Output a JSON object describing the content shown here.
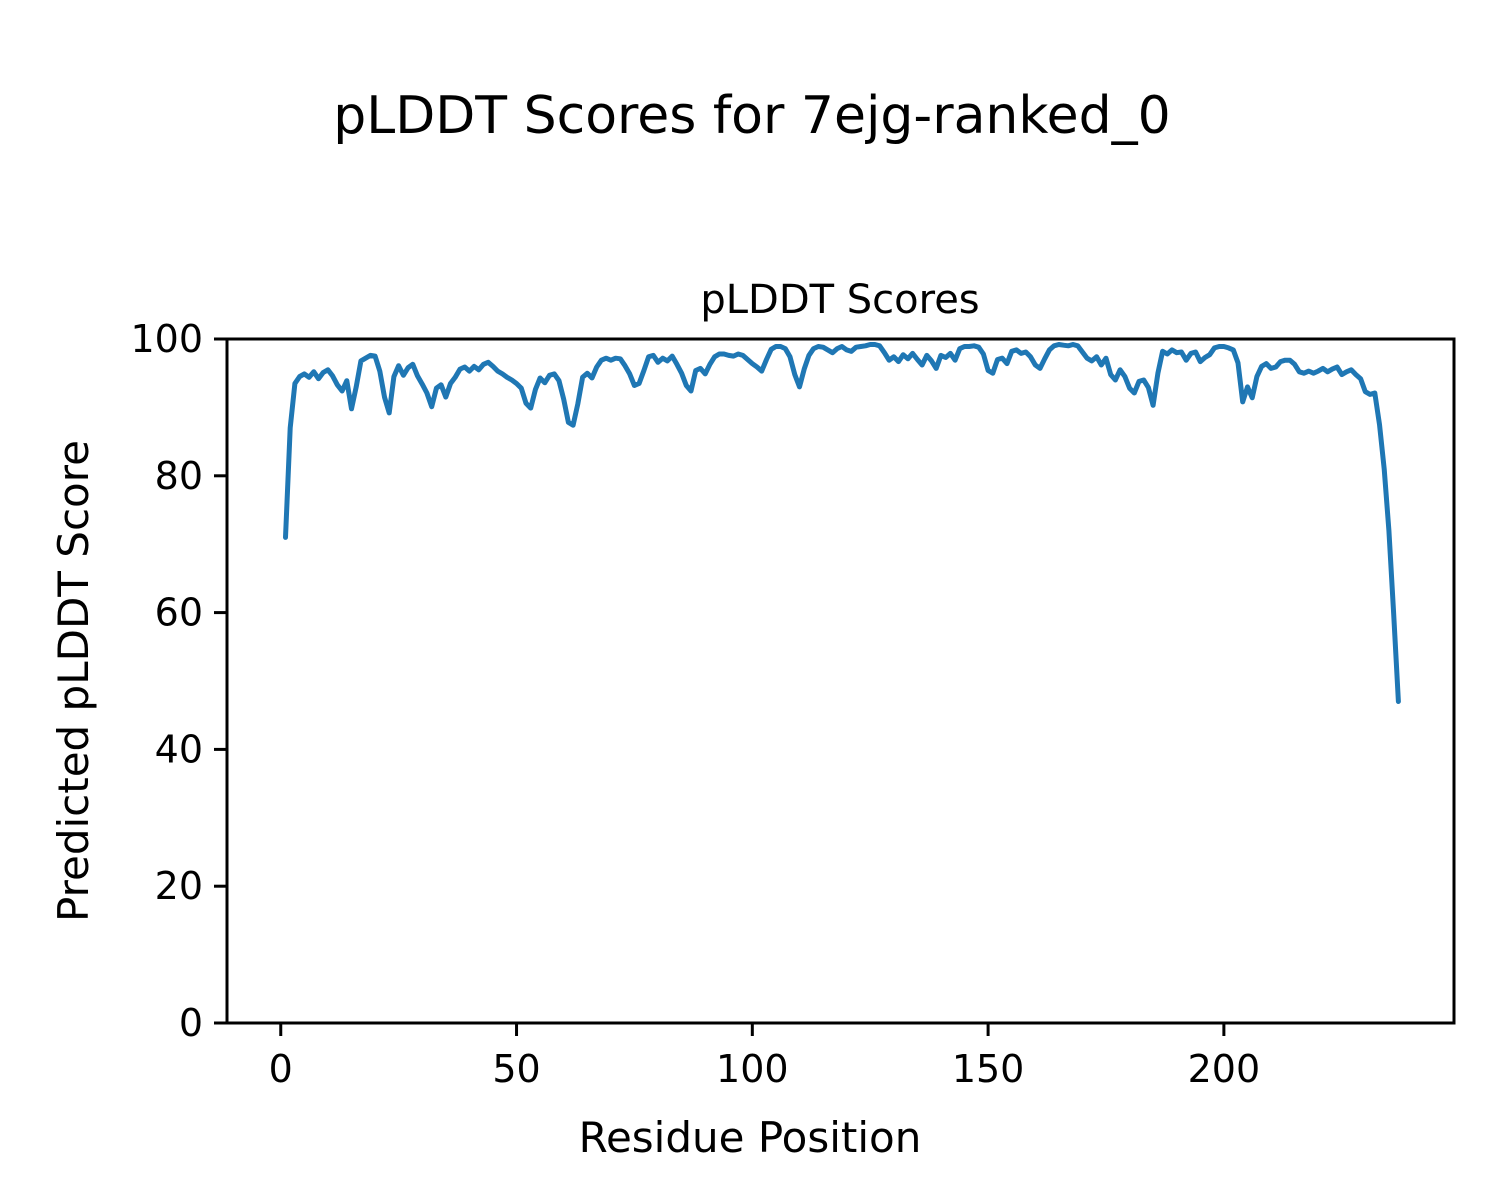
{
  "figure": {
    "suptitle": "pLDDT Scores for 7ejg-ranked_0"
  },
  "chart_data": {
    "type": "line",
    "title": "pLDDT Scores",
    "xlabel": "Residue Position",
    "ylabel": "Predicted pLDDT Score",
    "xlim": [
      -11.4,
      248.8
    ],
    "ylim": [
      0,
      100
    ],
    "xticks": [
      0,
      50,
      100,
      150,
      200
    ],
    "yticks": [
      0,
      20,
      40,
      60,
      80,
      100
    ],
    "grid": false,
    "legend": null,
    "line_color": "#1f77b4",
    "background_color": "#ffffff",
    "series": [
      {
        "name": "pLDDT",
        "x_start": 1,
        "y": [
          71,
          87,
          93.5,
          94.5,
          94.9,
          94.4,
          95.2,
          94.2,
          95.1,
          95.5,
          94.6,
          93.3,
          92.4,
          93.9,
          89.8,
          93,
          96.8,
          97.2,
          97.6,
          97.5,
          95.3,
          91.5,
          89.2,
          94.5,
          96.1,
          94.7,
          95.8,
          96.3,
          94.6,
          93.4,
          92.1,
          90.1,
          92.8,
          93.3,
          91.5,
          93.5,
          94.4,
          95.6,
          95.9,
          95.3,
          96,
          95.5,
          96.3,
          96.6,
          96,
          95.3,
          94.9,
          94.4,
          94,
          93.5,
          92.8,
          90.6,
          89.9,
          92.6,
          94.3,
          93.6,
          94.7,
          94.9,
          93.9,
          91.2,
          87.8,
          87.4,
          90.5,
          94.4,
          95,
          94.3,
          95.9,
          96.9,
          97.2,
          96.9,
          97.2,
          97.1,
          96.1,
          94.9,
          93.2,
          93.5,
          95.4,
          97.4,
          97.6,
          96.6,
          97.2,
          96.8,
          97.5,
          96.3,
          95,
          93.2,
          92.4,
          95.4,
          95.7,
          94.9,
          96.3,
          97.4,
          97.8,
          97.8,
          97.6,
          97.5,
          97.8,
          97.6,
          97,
          96.4,
          95.9,
          95.3,
          97,
          98.5,
          98.9,
          98.9,
          98.6,
          97.4,
          94.8,
          93,
          95.6,
          97.6,
          98.6,
          98.9,
          98.8,
          98.4,
          98,
          98.6,
          98.9,
          98.4,
          98.2,
          98.8,
          98.9,
          99,
          99.2,
          99.2,
          99,
          98,
          96.9,
          97.4,
          96.7,
          97.7,
          97.1,
          97.9,
          97,
          96.2,
          97.6,
          96.8,
          95.7,
          97.6,
          97.3,
          97.9,
          96.9,
          98.6,
          98.9,
          98.9,
          99,
          98.8,
          97.8,
          95.4,
          95,
          97,
          97.2,
          96.4,
          98.2,
          98.4,
          97.9,
          98.1,
          97.4,
          96.2,
          95.7,
          97.1,
          98.4,
          99,
          99.2,
          99.1,
          99,
          99.2,
          99,
          98.1,
          97.2,
          96.8,
          97.4,
          96.2,
          97.2,
          94.8,
          94,
          95.5,
          94.5,
          92.8,
          92.1,
          93.8,
          94,
          92.9,
          90.3,
          95,
          98.2,
          97.8,
          98.4,
          98,
          98.1,
          96.9,
          97.9,
          98.1,
          96.7,
          97.3,
          97.7,
          98.7,
          98.9,
          98.9,
          98.7,
          98.4,
          96.5,
          90.8,
          93,
          91.4,
          94.5,
          96,
          96.4,
          95.7,
          95.9,
          96.7,
          96.9,
          96.9,
          96.3,
          95.2,
          95,
          95.3,
          95,
          95.3,
          95.7,
          95.2,
          95.6,
          95.9,
          94.8,
          95.2,
          95.5,
          94.8,
          94.2,
          92.3,
          91.9,
          92.1,
          87.5,
          81,
          72,
          60,
          47
        ]
      }
    ]
  }
}
